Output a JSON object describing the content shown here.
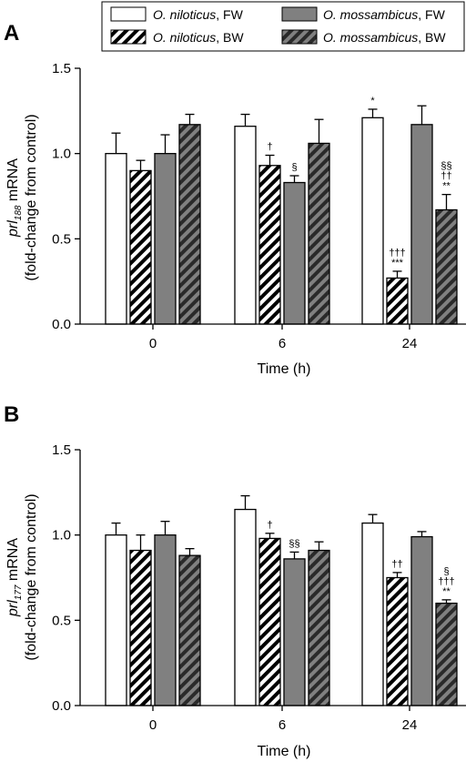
{
  "legend": [
    {
      "species": "O. niloticus",
      "condition": ", FW",
      "style": "open"
    },
    {
      "species": "O. niloticus",
      "condition": ", BW",
      "style": "open-hatched"
    },
    {
      "species": "O. mossambicus",
      "condition": ", FW",
      "style": "gray"
    },
    {
      "species": "O. mossambicus",
      "condition": ", BW",
      "style": "gray-hatched"
    }
  ],
  "colors": {
    "open_fill": "#ffffff",
    "gray_fill": "#808080",
    "stroke": "#000000",
    "hatch": "#000000"
  },
  "chart_data": [
    {
      "type": "bar",
      "panel": "A",
      "ylabel_italic": "prl",
      "ylabel_sub": "188",
      "ylabel_rest": " mRNA",
      "ylabel_line2": "(fold-change from control)",
      "xlabel": "Time (h)",
      "categories": [
        "0",
        "6",
        "24"
      ],
      "ylim": [
        0,
        1.5
      ],
      "yticks": [
        "0.0",
        "0.5",
        "1.0",
        "1.5"
      ],
      "grid": false,
      "legend_position": "top",
      "series": [
        {
          "name": "O. niloticus, FW",
          "values": [
            1.0,
            1.16,
            1.21
          ],
          "errors": [
            0.12,
            0.07,
            0.05
          ],
          "annotations": [
            [],
            [],
            [
              "*"
            ]
          ]
        },
        {
          "name": "O. niloticus, BW",
          "values": [
            0.9,
            0.93,
            0.27
          ],
          "errors": [
            0.06,
            0.06,
            0.04
          ],
          "annotations": [
            [],
            [
              "†"
            ],
            [
              "†††",
              "***"
            ]
          ]
        },
        {
          "name": "O. mossambicus, FW",
          "values": [
            1.0,
            0.83,
            1.17
          ],
          "errors": [
            0.11,
            0.04,
            0.11
          ],
          "annotations": [
            [],
            [
              "§"
            ],
            []
          ]
        },
        {
          "name": "O. mossambicus, BW",
          "values": [
            1.17,
            1.06,
            0.67
          ],
          "errors": [
            0.06,
            0.14,
            0.09
          ],
          "annotations": [
            [],
            [],
            [
              "§§",
              "††",
              "**"
            ]
          ]
        }
      ]
    },
    {
      "type": "bar",
      "panel": "B",
      "ylabel_italic": "prl",
      "ylabel_sub": "177",
      "ylabel_rest": " mRNA",
      "ylabel_line2": "(fold-change from control)",
      "xlabel": "Time (h)",
      "categories": [
        "0",
        "6",
        "24"
      ],
      "ylim": [
        0,
        1.5
      ],
      "yticks": [
        "0.0",
        "0.5",
        "1.0",
        "1.5"
      ],
      "grid": false,
      "series": [
        {
          "name": "O. niloticus, FW",
          "values": [
            1.0,
            1.15,
            1.07
          ],
          "errors": [
            0.07,
            0.08,
            0.05
          ],
          "annotations": [
            [],
            [],
            []
          ]
        },
        {
          "name": "O. niloticus, BW",
          "values": [
            0.91,
            0.98,
            0.75
          ],
          "errors": [
            0.09,
            0.03,
            0.03
          ],
          "annotations": [
            [],
            [
              "†"
            ],
            [
              "††"
            ]
          ]
        },
        {
          "name": "O. mossambicus, FW",
          "values": [
            1.0,
            0.86,
            0.99
          ],
          "errors": [
            0.08,
            0.04,
            0.03
          ],
          "annotations": [
            [],
            [
              "§§"
            ],
            []
          ]
        },
        {
          "name": "O. mossambicus, BW",
          "values": [
            0.88,
            0.91,
            0.6
          ],
          "errors": [
            0.04,
            0.05,
            0.02
          ],
          "annotations": [
            [],
            [],
            [
              "§",
              "†††",
              "**"
            ]
          ]
        }
      ]
    }
  ]
}
